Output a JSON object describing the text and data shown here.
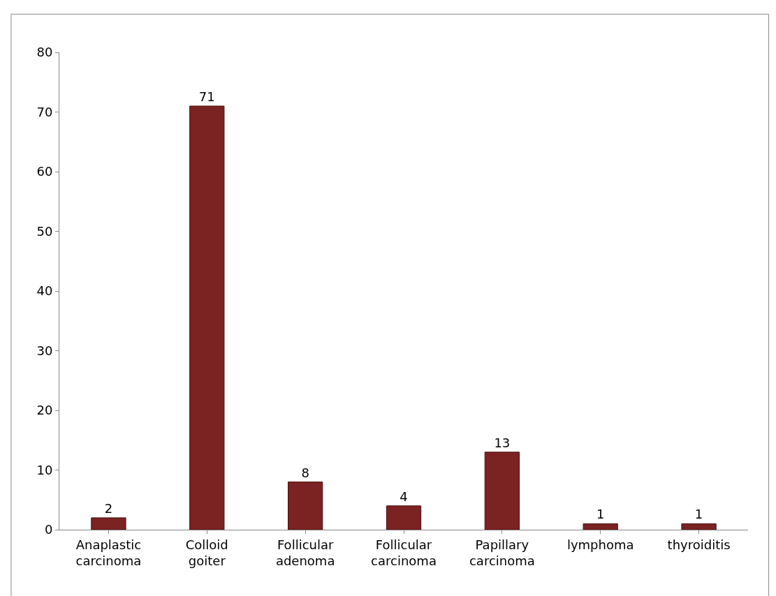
{
  "chart_data": {
    "type": "bar",
    "categories": [
      "Anaplastic carcinoma",
      "Colloid goiter",
      "Follicular adenoma",
      "Follicular carcinoma",
      "Papillary carcinoma",
      "lymphoma",
      "thyroiditis"
    ],
    "values": [
      2,
      71,
      8,
      4,
      13,
      1,
      1
    ],
    "color": "#7b2222",
    "ylim": [
      0,
      80
    ],
    "yticks": [
      0,
      10,
      20,
      30,
      40,
      50,
      60,
      70,
      80
    ],
    "grid": false,
    "data_labels": true
  }
}
